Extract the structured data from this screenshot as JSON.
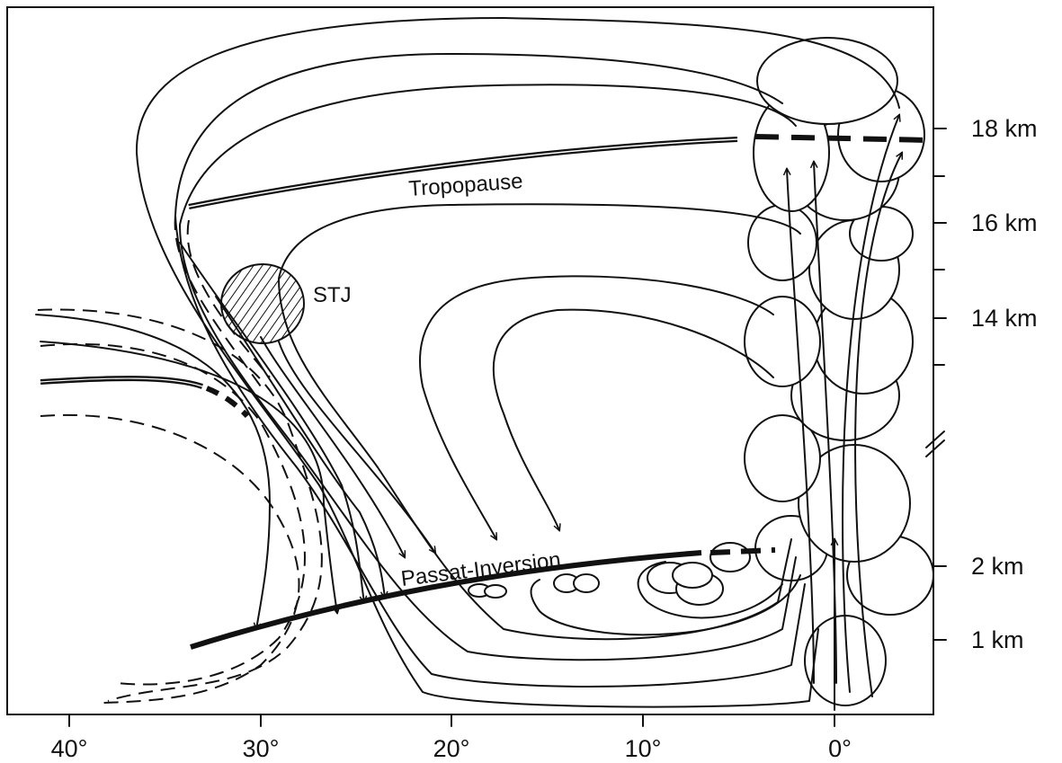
{
  "labels": {
    "tropopause": "Tropopause",
    "stj": "STJ",
    "passat_inversion": "Passat-Inversion"
  },
  "x_axis": {
    "ticks": [
      "40°",
      "30°",
      "20°",
      "10°",
      "0°"
    ]
  },
  "y_axis": {
    "ticks": [
      "18 km",
      "16 km",
      "14 km",
      "2 km",
      "1 km"
    ]
  },
  "colors": {
    "ink": "#111111",
    "background": "#ffffff"
  }
}
